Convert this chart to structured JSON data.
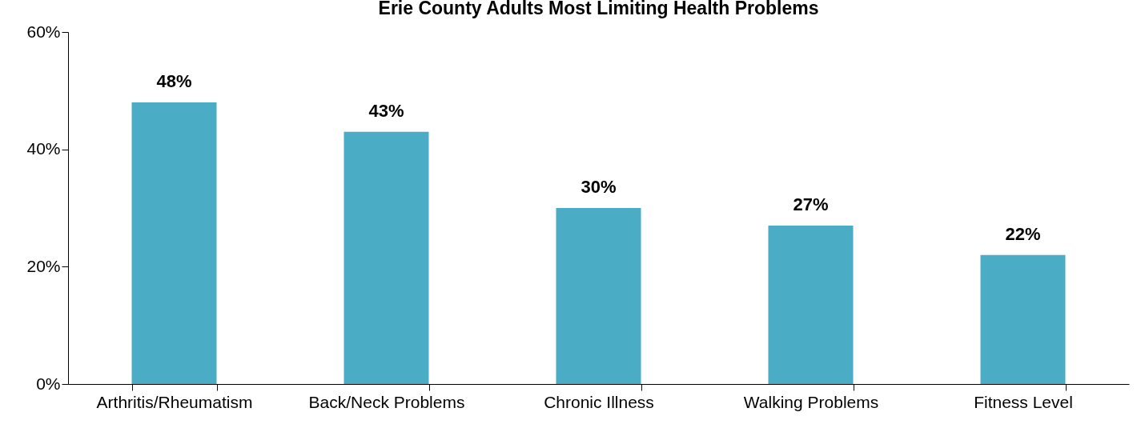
{
  "chart_data": {
    "type": "bar",
    "title": "Erie County Adults Most Limiting Health Problems",
    "categories": [
      "Arthritis/Rheumatism",
      "Back/Neck Problems",
      "Chronic Illness",
      "Walking Problems",
      "Fitness Level"
    ],
    "values": [
      48,
      43,
      30,
      27,
      22
    ],
    "value_labels": [
      "48%",
      "43%",
      "30%",
      "27%",
      "22%"
    ],
    "color": "#4bacc6",
    "ylim": [
      0,
      60
    ],
    "yticks": [
      {
        "value": 0,
        "label": "0%"
      },
      {
        "value": 20,
        "label": "20%"
      },
      {
        "value": 40,
        "label": "40%"
      },
      {
        "value": 60,
        "label": "60%"
      }
    ]
  }
}
